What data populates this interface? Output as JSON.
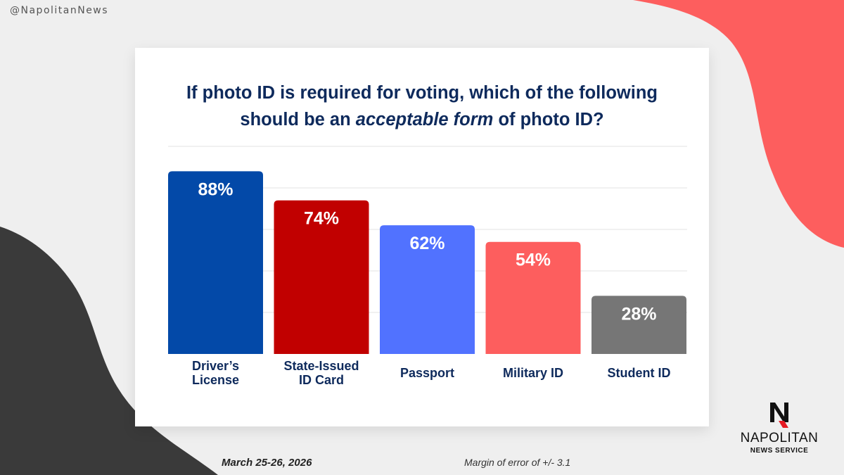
{
  "handle": "@NapolitanNews",
  "title": {
    "line1": "If photo ID is required for voting, which of the following",
    "line2_before": "should be an",
    "line2_emphasis": "acceptable form",
    "line2_after": "of photo ID?"
  },
  "footer": {
    "date": "March 25-26, 2026",
    "margin_of_error": "Margin of error of +/- 3.1"
  },
  "logo": {
    "name": "NAPOLITAN",
    "subtitle": "NEWS SERVICE"
  },
  "colors": {
    "navy": "#0e2a5c",
    "red_blob": "#fd5e5e",
    "dark_blob": "#3a3a3a"
  },
  "chart_data": {
    "type": "bar",
    "categories": [
      [
        "Driver’s",
        "License"
      ],
      [
        "State-Issued",
        "ID Card"
      ],
      [
        "Passport"
      ],
      [
        "Military ID"
      ],
      [
        "Student ID"
      ]
    ],
    "values": [
      88,
      74,
      62,
      54,
      28
    ],
    "value_labels": [
      "88%",
      "74%",
      "62%",
      "54%",
      "28%"
    ],
    "bar_colors": [
      "#0349a8",
      "#c10000",
      "#5172ff",
      "#fd5e5e",
      "#767676"
    ],
    "ylim": [
      0,
      100
    ],
    "gridlines": true,
    "legend": "none"
  }
}
